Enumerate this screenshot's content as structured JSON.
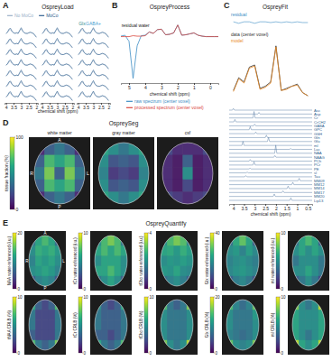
{
  "chart_data": [
    {
      "type": "line",
      "panel": "A",
      "title": "OspreyLoad",
      "x_label": "chemical shift (ppm)",
      "x": [
        4.0,
        3.9,
        3.8,
        3.7,
        3.6,
        3.5,
        3.4,
        3.3,
        3.2,
        3.1,
        3.0,
        2.9,
        2.8,
        2.7,
        2.6,
        2.5,
        2.4,
        2.3,
        2.2,
        2.1,
        2.0
      ],
      "xlim": [
        4.1,
        1.9
      ],
      "xticks": [
        4,
        3.5,
        3,
        2.5,
        2
      ],
      "ylim": [
        -0.8,
        1.0
      ],
      "tick_labels": "x",
      "series": [
        {
          "name": "No MoCo",
          "color": "#9ab0c8",
          "values": [
            0.0,
            0.15,
            0.55,
            0.6,
            0.3,
            0.1,
            0.05,
            0.1,
            0.05,
            0.4,
            0.7,
            0.35,
            0.1,
            0.05,
            0.0,
            0.1,
            0.15,
            0.1,
            0.0,
            -0.25,
            -0.5
          ]
        },
        {
          "name": "MoCo",
          "color": "#2f5f8f",
          "values": [
            0.0,
            0.2,
            0.7,
            0.8,
            0.3,
            0.1,
            0.0,
            0.1,
            0.0,
            0.5,
            0.9,
            0.4,
            0.1,
            0.0,
            0.0,
            0.1,
            0.2,
            0.1,
            0.0,
            -0.3,
            -0.6
          ]
        }
      ],
      "annotations": [
        {
          "text": "Glx",
          "x": 3.75
        },
        {
          "text": "GABA+",
          "x": 3.0
        }
      ]
    },
    {
      "type": "line",
      "panel": "B",
      "title": "OspreyProcess",
      "x_label": "chemical shift (ppm)",
      "x": [
        5.5,
        5.25,
        5.0,
        4.75,
        4.5,
        4.25,
        4.0,
        3.75,
        3.5,
        3.25,
        3.0,
        2.75,
        2.5,
        2.25,
        2.0,
        1.75,
        1.5,
        1.25,
        1.0,
        0.75,
        0.5,
        0.25,
        0.0,
        -0.25,
        -0.5
      ],
      "xlim": [
        5.5,
        -0.5
      ],
      "xticks": [
        5,
        4,
        3,
        2,
        1,
        0
      ],
      "ylim": [
        -10,
        4
      ],
      "tick_labels": "x",
      "series": [
        {
          "name": "raw spectrum (center voxel)",
          "color": "#3c8dc4",
          "values": [
            0.1,
            0.3,
            -1.0,
            -9.0,
            -2.0,
            0.2,
            0.3,
            1.0,
            0.7,
            1.5,
            1.6,
            0.4,
            0.5,
            0.8,
            2.5,
            0.3,
            0.4,
            0.6,
            0.8,
            0.3,
            0.1,
            0.0,
            0.0,
            0.0,
            0.0
          ]
        },
        {
          "name": "processed spectrum (center voxel)",
          "color": "#d9473f",
          "values": [
            0.0,
            0.0,
            0.0,
            0.2,
            0.1,
            0.1,
            0.2,
            1.0,
            0.7,
            1.5,
            1.6,
            0.4,
            0.5,
            0.8,
            2.5,
            0.3,
            0.4,
            0.6,
            0.8,
            0.3,
            0.1,
            0.0,
            0.0,
            0.0,
            0.0
          ]
        }
      ],
      "annotations": [
        {
          "text": "residual water",
          "x": 4.6
        }
      ]
    },
    {
      "type": "line",
      "panel": "C",
      "title": "OspreyFit",
      "x_label": "chemical shift (ppm)",
      "x": [
        4.0,
        3.75,
        3.5,
        3.25,
        3.0,
        2.75,
        2.5,
        2.25,
        2.0,
        1.75,
        1.5,
        1.25,
        1.0,
        0.75,
        0.5
      ],
      "xlim": [
        4.2,
        0.3
      ],
      "xticks": [
        4,
        3.5,
        3,
        2.5,
        2,
        1.5,
        1,
        0.5
      ],
      "ylim": [
        -0.2,
        3.2
      ],
      "tick_labels": "x",
      "residual": {
        "name": "residual",
        "color": "#3c8dc4",
        "ylim": [
          -0.3,
          0.3
        ],
        "values": [
          0.05,
          -0.05,
          0.05,
          0.05,
          -0.05,
          0.05,
          0.05,
          0.0,
          0.05,
          0.0,
          0.05,
          0.0,
          0.05,
          0.0,
          0.0
        ]
      },
      "series": [
        {
          "name": "data (center voxel)",
          "color": "#333333",
          "values": [
            0.3,
            0.9,
            0.7,
            1.4,
            1.5,
            0.4,
            0.5,
            0.7,
            2.4,
            0.3,
            0.4,
            0.5,
            0.6,
            0.2,
            0.05
          ]
        },
        {
          "name": "model",
          "color": "#e8871e",
          "values": [
            0.25,
            0.85,
            0.65,
            1.35,
            1.45,
            0.35,
            0.45,
            0.65,
            2.35,
            0.3,
            0.35,
            0.5,
            0.55,
            0.2,
            0.05
          ]
        }
      ],
      "components_ylim": [
        0,
        1
      ],
      "components": [
        {
          "name": "Asc",
          "ppm": 4.0,
          "amplitude": 0.2
        },
        {
          "name": "Asp",
          "ppm": 2.8,
          "amplitude": 0.2
        },
        {
          "name": "Cr",
          "ppm": 3.03,
          "amplitude": 0.8
        },
        {
          "name": "CrCH2",
          "ppm": 3.93,
          "amplitude": 0.3
        },
        {
          "name": "GABA",
          "ppm": 3.0,
          "amplitude": 0.2
        },
        {
          "name": "GPC",
          "ppm": 3.21,
          "amplitude": 0.4
        },
        {
          "name": "GSH",
          "ppm": 2.95,
          "amplitude": 0.2
        },
        {
          "name": "Gln",
          "ppm": 2.45,
          "amplitude": 0.3
        },
        {
          "name": "Glu",
          "ppm": 2.35,
          "amplitude": 0.5
        },
        {
          "name": "mI",
          "ppm": 3.55,
          "amplitude": 0.5
        },
        {
          "name": "Lac",
          "ppm": 1.31,
          "amplitude": 0.1
        },
        {
          "name": "NAA",
          "ppm": 2.01,
          "amplitude": 1.0
        },
        {
          "name": "NAAG",
          "ppm": 2.05,
          "amplitude": 0.2
        },
        {
          "name": "PCh",
          "ppm": 3.21,
          "amplitude": 0.2
        },
        {
          "name": "PCr",
          "ppm": 3.03,
          "amplitude": 0.4
        },
        {
          "name": "PE",
          "ppm": 3.22,
          "amplitude": 0.1
        },
        {
          "name": "sI",
          "ppm": 3.35,
          "amplitude": 0.1
        },
        {
          "name": "Tau",
          "ppm": 3.42,
          "amplitude": 0.15
        },
        {
          "name": "MM09",
          "ppm": 0.91,
          "amplitude": 0.3
        },
        {
          "name": "MM12",
          "ppm": 1.21,
          "amplitude": 0.3
        },
        {
          "name": "MM14",
          "ppm": 1.43,
          "amplitude": 0.3
        },
        {
          "name": "MM17",
          "ppm": 1.67,
          "amplitude": 0.2
        },
        {
          "name": "MM20",
          "ppm": 2.08,
          "amplitude": 0.3
        },
        {
          "name": "Lip13",
          "ppm": 1.3,
          "amplitude": 0.3
        }
      ]
    },
    {
      "type": "heatmap",
      "panel": "D",
      "title": "OspreySeg",
      "colorbar_label": "tissue fraction (%)",
      "colorbar_range": [
        0,
        100
      ],
      "colorbar_ticks": [
        0,
        100
      ],
      "direction_labels": [
        "A",
        "P",
        "R",
        "L"
      ],
      "maps": [
        {
          "title": "white matter",
          "cells": [
            [
              10,
              30,
              40,
              30,
              10
            ],
            [
              30,
              70,
              60,
              70,
              30
            ],
            [
              40,
              80,
              30,
              80,
              40
            ],
            [
              30,
              70,
              60,
              70,
              30
            ],
            [
              10,
              30,
              40,
              30,
              10
            ]
          ]
        },
        {
          "title": "gray matter",
          "cells": [
            [
              60,
              50,
              40,
              50,
              60
            ],
            [
              50,
              25,
              30,
              25,
              50
            ],
            [
              45,
              15,
              20,
              15,
              45
            ],
            [
              50,
              25,
              30,
              25,
              50
            ],
            [
              60,
              50,
              40,
              50,
              60
            ]
          ]
        },
        {
          "title": "csf",
          "cells": [
            [
              20,
              10,
              10,
              10,
              20
            ],
            [
              10,
              5,
              30,
              5,
              10
            ],
            [
              10,
              5,
              50,
              5,
              10
            ],
            [
              10,
              5,
              20,
              5,
              10
            ],
            [
              20,
              15,
              10,
              15,
              20
            ]
          ]
        }
      ]
    },
    {
      "type": "heatmap",
      "panel": "E",
      "title": "OspreyQuantify",
      "direction_labels": [
        "A",
        "P",
        "R",
        "L"
      ],
      "maps": [
        {
          "title": "NAA water-referenced (i.u.)",
          "colorbar_range": [
            0,
            20
          ],
          "colorbar_ticks": [
            0,
            20
          ],
          "cells": [
            [
              8,
              12,
              14,
              12,
              7
            ],
            [
              10,
              13,
              12,
              13,
              11
            ],
            [
              9,
              12,
              11,
              12,
              10
            ],
            [
              10,
              11,
              12,
              11,
              9
            ],
            [
              6,
              9,
              10,
              9,
              5
            ]
          ]
        },
        {
          "title": "tCr water-referenced (i.u.)",
          "colorbar_range": [
            0,
            10
          ],
          "colorbar_ticks": [
            0,
            10
          ],
          "cells": [
            [
              5,
              7,
              8,
              7,
              4
            ],
            [
              6,
              7,
              6,
              7,
              6
            ],
            [
              5,
              6,
              6,
              6,
              5
            ],
            [
              6,
              6,
              7,
              6,
              5
            ],
            [
              4,
              5,
              6,
              5,
              3
            ]
          ]
        },
        {
          "title": "tCho water-referenced (i.u.)",
          "colorbar_range": [
            0,
            4
          ],
          "colorbar_ticks": [
            0,
            4
          ],
          "cells": [
            [
              2.1,
              2.8,
              3.2,
              2.9,
              1.8
            ],
            [
              2.4,
              2.5,
              2.2,
              2.6,
              2.3
            ],
            [
              2.0,
              2.2,
              2.1,
              2.3,
              2.1
            ],
            [
              2.2,
              2.1,
              2.4,
              2.0,
              1.9
            ],
            [
              1.5,
              1.8,
              2.0,
              1.7,
              1.2
            ]
          ]
        },
        {
          "title": "Glx water-referenced (i.u.)",
          "colorbar_range": [
            0,
            40
          ],
          "colorbar_ticks": [
            0,
            40
          ],
          "cells": [
            [
              15,
              25,
              30,
              24,
              12
            ],
            [
              20,
              22,
              18,
              23,
              19
            ],
            [
              18,
              20,
              21,
              19,
              17
            ],
            [
              19,
              21,
              22,
              20,
              18
            ],
            [
              12,
              17,
              19,
              16,
              10
            ]
          ]
        },
        {
          "title": "mI water-referenced (i.u.)",
          "colorbar_range": [
            0,
            10
          ],
          "colorbar_ticks": [
            0,
            10
          ],
          "cells": [
            [
              4,
              6,
              7,
              6,
              3
            ],
            [
              5,
              6,
              5,
              6,
              5
            ],
            [
              4,
              5,
              5,
              5,
              4
            ],
            [
              5,
              5,
              6,
              5,
              4
            ],
            [
              3,
              4,
              5,
              4,
              2
            ]
          ]
        },
        {
          "title": "tNAA CRLB (%)",
          "colorbar_range": [
            0,
            10
          ],
          "colorbar_ticks": [
            0,
            10
          ],
          "cells": [
            [
              6,
              3,
              2,
              3,
              7
            ],
            [
              4,
              2,
              2,
              2,
              4
            ],
            [
              4,
              2,
              2,
              2,
              4
            ],
            [
              3,
              2,
              2,
              2,
              4
            ],
            [
              7,
              4,
              3,
              4,
              8
            ]
          ]
        },
        {
          "title": "tCr CRLB (%)",
          "colorbar_range": [
            0,
            10
          ],
          "colorbar_ticks": [
            0,
            10
          ],
          "cells": [
            [
              5,
              3,
              2,
              3,
              6
            ],
            [
              4,
              3,
              3,
              3,
              4
            ],
            [
              4,
              3,
              3,
              3,
              4
            ],
            [
              3,
              3,
              2,
              3,
              4
            ],
            [
              6,
              4,
              3,
              4,
              7
            ]
          ]
        },
        {
          "title": "tCho CRLB (%)",
          "colorbar_range": [
            0,
            10
          ],
          "colorbar_ticks": [
            0,
            10
          ],
          "cells": [
            [
              7,
              4,
              3,
              4,
              8
            ],
            [
              5,
              4,
              4,
              4,
              5
            ],
            [
              5,
              4,
              4,
              4,
              5
            ],
            [
              5,
              4,
              4,
              4,
              5
            ],
            [
              8,
              5,
              4,
              5,
              9
            ]
          ]
        },
        {
          "title": "Glx CRLB (%)",
          "colorbar_range": [
            0,
            20
          ],
          "colorbar_ticks": [
            0,
            20
          ],
          "cells": [
            [
              14,
              9,
              7,
              9,
              15
            ],
            [
              10,
              8,
              8,
              8,
              11
            ],
            [
              10,
              8,
              8,
              8,
              10
            ],
            [
              9,
              8,
              7,
              8,
              10
            ],
            [
              15,
              10,
              9,
              10,
              16
            ]
          ]
        },
        {
          "title": "mI CRLB (%)",
          "colorbar_range": [
            0,
            10
          ],
          "colorbar_ticks": [
            0,
            10
          ],
          "cells": [
            [
              8,
              5,
              4,
              5,
              9
            ],
            [
              6,
              5,
              5,
              5,
              6
            ],
            [
              6,
              5,
              5,
              5,
              6
            ],
            [
              6,
              5,
              4,
              5,
              6
            ],
            [
              9,
              6,
              5,
              6,
              9
            ]
          ]
        }
      ]
    }
  ]
}
